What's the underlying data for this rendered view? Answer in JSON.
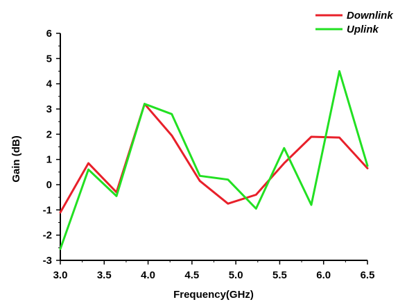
{
  "chart_data": {
    "type": "line",
    "title": "",
    "xlabel": "Frequency(GHz)",
    "ylabel": "Gain (dB)",
    "xlim": [
      3.0,
      6.5
    ],
    "ylim": [
      -3,
      6
    ],
    "grid": false,
    "legend_position": "top-right",
    "x_ticks": [
      "3.0",
      "3.5",
      "4.0",
      "4.5",
      "5.0",
      "5.5",
      "6.0",
      "6.5"
    ],
    "y_ticks": [
      "-3",
      "-2",
      "-1",
      "0",
      "1",
      "2",
      "3",
      "4",
      "5",
      "6"
    ],
    "series": [
      {
        "name": "Downlink",
        "color": "#e8202a",
        "x": [
          3.0,
          3.32,
          3.64,
          3.96,
          4.27,
          4.59,
          4.91,
          5.23,
          5.55,
          5.86,
          6.18,
          6.5
        ],
        "y": [
          -1.1,
          0.85,
          -0.3,
          3.2,
          1.95,
          0.15,
          -0.75,
          -0.4,
          0.85,
          1.9,
          1.87,
          0.65
        ]
      },
      {
        "name": "Uplink",
        "color": "#22e022",
        "x": [
          3.0,
          3.32,
          3.64,
          3.96,
          4.27,
          4.59,
          4.91,
          5.23,
          5.55,
          5.86,
          6.18,
          6.5
        ],
        "y": [
          -2.55,
          0.6,
          -0.45,
          3.2,
          2.8,
          0.35,
          0.2,
          -0.95,
          1.45,
          -0.8,
          4.5,
          0.75
        ]
      }
    ]
  }
}
